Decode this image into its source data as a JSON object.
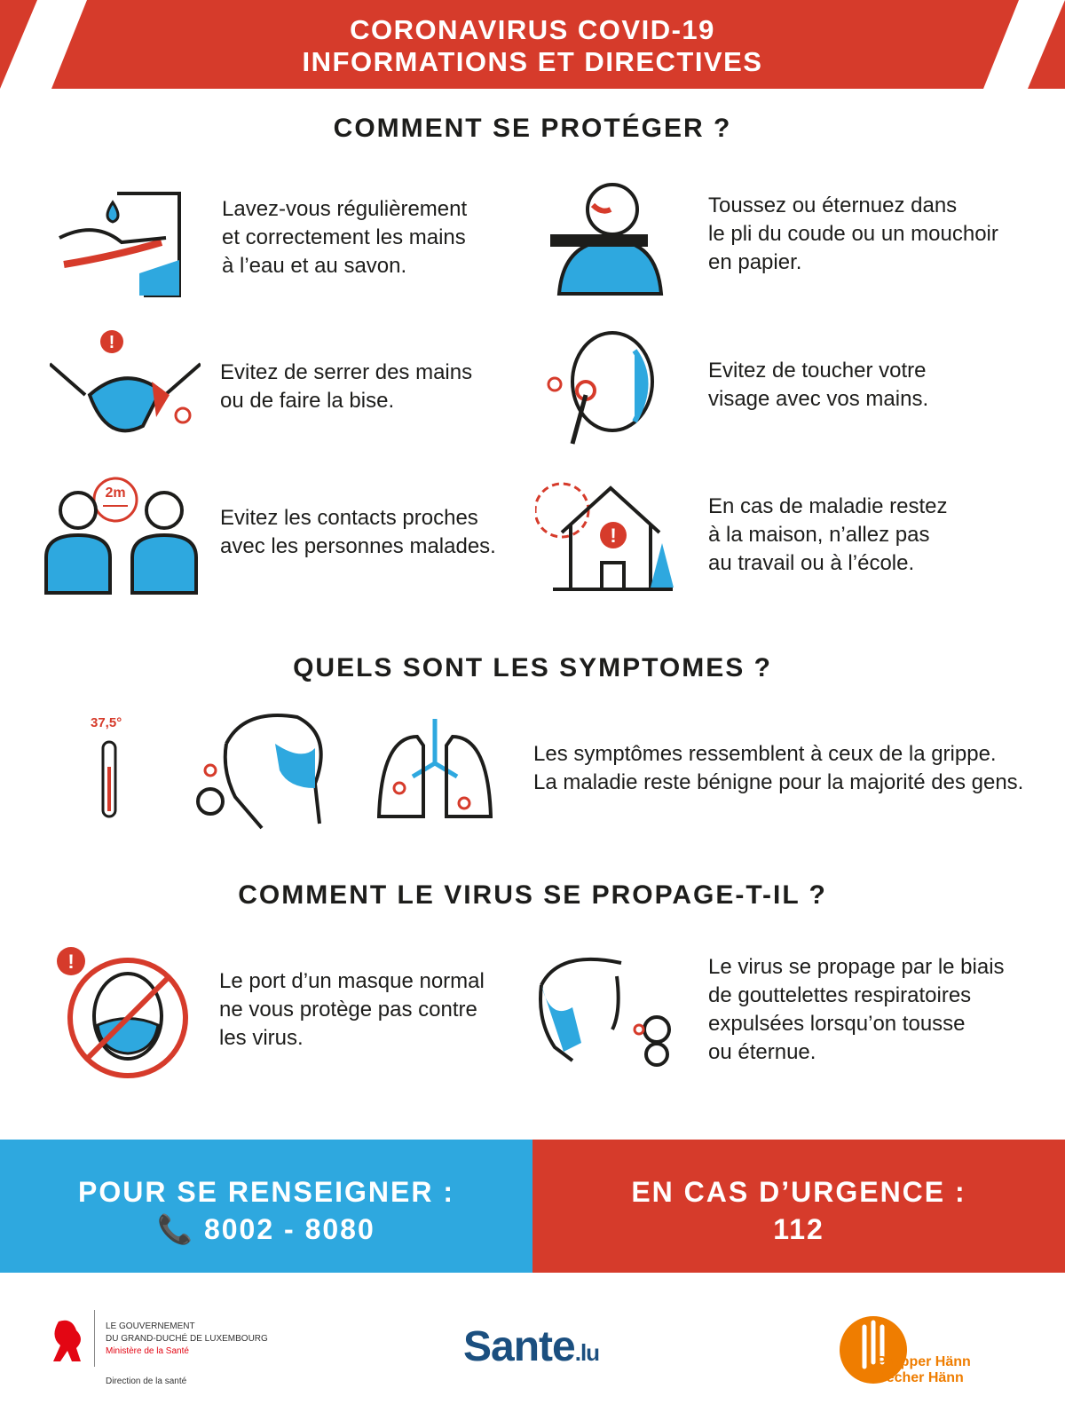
{
  "header": {
    "line1": "CORONAVIRUS COVID-19",
    "line2": "INFORMATIONS ET DIRECTIVES"
  },
  "colors": {
    "red": "#d63b2b",
    "blue": "#2ea8df",
    "navy": "#1b4f7f",
    "orange": "#ef7d00"
  },
  "protect": {
    "title": "COMMENT SE PROTÉGER ?",
    "items": [
      {
        "icon": "handwash-icon",
        "text": "Lavez-vous régulièrement\net correctement les mains\nà l’eau et au savon."
      },
      {
        "icon": "cough-elbow-icon",
        "text": "Toussez ou éternuez dans\nle pli du coude ou un mouchoir\nen papier."
      },
      {
        "icon": "handshake-icon",
        "text": "Evitez de serrer des mains\nou de faire la bise."
      },
      {
        "icon": "touch-face-icon",
        "text": "Evitez de toucher votre\nvisage avec vos mains."
      },
      {
        "icon": "distance-icon",
        "distance_label": "2m",
        "text": "Evitez les contacts proches\navec les personnes malades."
      },
      {
        "icon": "stay-home-icon",
        "text": "En cas de maladie restez\nà la maison, n’allez pas\nau travail ou à l’école."
      }
    ]
  },
  "symptoms": {
    "title": "QUELS SONT LES SYMPTOMES ?",
    "temperature": "37,5°",
    "text": "Les symptômes ressemblent à ceux de la grippe.\nLa maladie reste bénigne pour la majorité des gens."
  },
  "spread": {
    "title": "COMMENT LE VIRUS SE PROPAGE-T-IL ?",
    "items": [
      {
        "icon": "no-mask-icon",
        "text": "Le port d’un masque normal\nne vous protège pas contre\nles virus."
      },
      {
        "icon": "droplets-icon",
        "text": "Le virus se propage par le biais\nde gouttelettes respiratoires\nexpulsées lorsqu’on tousse\nou éternue."
      }
    ]
  },
  "info": {
    "label": "POUR SE RENSEIGNER :",
    "phone": "8002 - 8080",
    "icon": "phone-icon"
  },
  "emergency": {
    "label": "EN CAS D’URGENCE :",
    "number": "112"
  },
  "footer": {
    "gov": {
      "line1": "LE GOUVERNEMENT",
      "line2": "DU GRAND-DUCHÉ DE LUXEMBOURG",
      "line3": "Ministère de la Santé",
      "line4": "Direction de la santé"
    },
    "sante": {
      "main": "Sante",
      "suffix": ".lu"
    },
    "propper": {
      "line1": "Propper Hänn",
      "line2": "Sécher Hänn"
    }
  }
}
